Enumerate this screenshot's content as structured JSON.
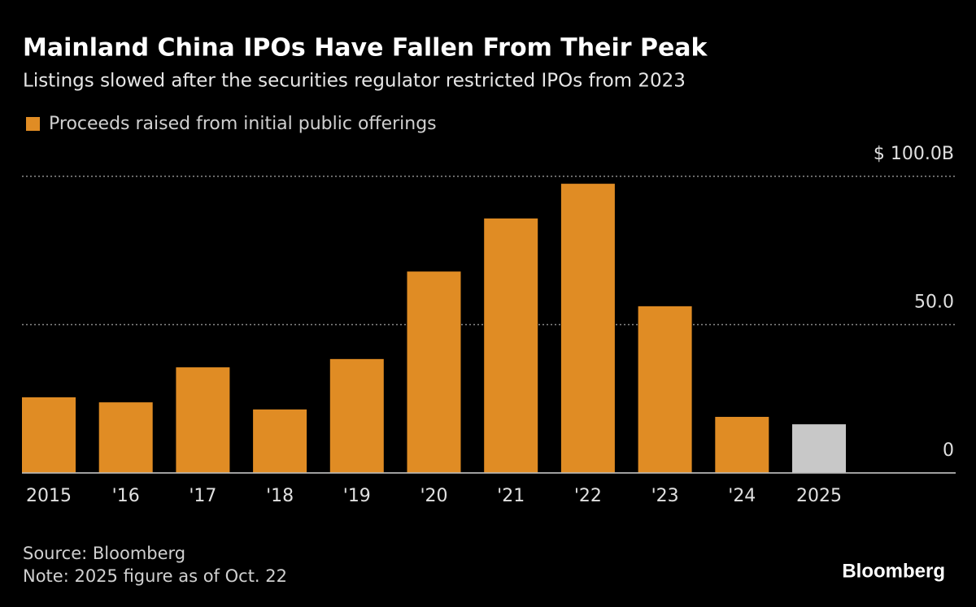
{
  "chart_data": {
    "type": "bar",
    "title": "Mainland China IPOs Have Fallen From Their Peak",
    "subtitle": "Listings slowed after the securities regulator restricted IPOs from 2023",
    "categories": [
      "2015",
      "'16",
      "'17",
      "'18",
      "'19",
      "'20",
      "'21",
      "'22",
      "'23",
      "'24",
      "2025"
    ],
    "series": [
      {
        "name": "Proceeds raised from initial public offerings",
        "color": "#e08c24",
        "values": [
          25.5,
          23.8,
          35.6,
          21.4,
          38.4,
          67.9,
          85.8,
          97.5,
          56.2,
          18.9,
          16.4
        ]
      }
    ],
    "bar_colors": [
      "#e08c24",
      "#e08c24",
      "#e08c24",
      "#e08c24",
      "#e08c24",
      "#e08c24",
      "#e08c24",
      "#e08c24",
      "#e08c24",
      "#e08c24",
      "#c8c8c8"
    ],
    "ylim": [
      0,
      100
    ],
    "yticks": [
      0,
      {
        "value": 50,
        "label": "50.0"
      },
      {
        "value": 100,
        "label": "$ 100.0B"
      }
    ],
    "grid": true,
    "source": "Source: Bloomberg",
    "note": "Note: 2025 figure as of Oct. 22",
    "brand": "Bloomberg"
  }
}
